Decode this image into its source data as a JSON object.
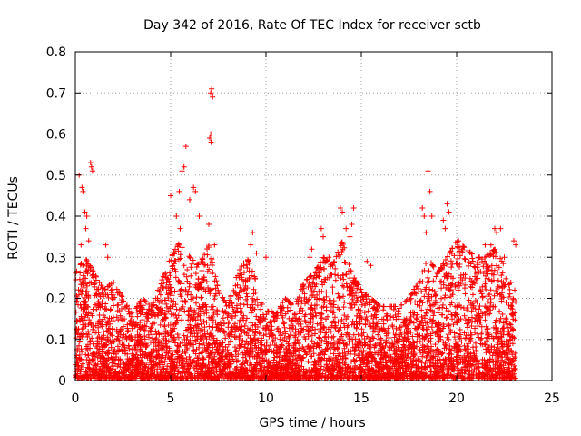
{
  "chart_data": {
    "type": "scatter",
    "title": "Day 342 of 2016, Rate Of TEC Index for receiver sctb",
    "xlabel": "GPS time / hours",
    "ylabel": "ROTI / TECUs",
    "xlim": [
      0,
      25
    ],
    "ylim": [
      0,
      0.8
    ],
    "xticks": [
      0,
      5,
      10,
      15,
      20,
      25
    ],
    "xtick_labels": [
      "0",
      "5",
      "10",
      "15",
      "20",
      "25"
    ],
    "yticks": [
      0,
      0.1,
      0.2,
      0.3,
      0.4,
      0.5,
      0.6,
      0.7,
      0.8
    ],
    "ytick_labels": [
      "0",
      "0.1",
      "0.2",
      "0.3",
      "0.4",
      "0.5",
      "0.6",
      "0.7",
      "0.8"
    ],
    "grid": true,
    "marker": "+",
    "color": "#ff0000",
    "series": [
      {
        "name": "ROTI",
        "description_values_note": "dense cloud of ROTI values from 0 to 23 h",
        "envelope_hours": [
          0,
          0.5,
          1,
          1.5,
          2,
          2.5,
          3,
          3.5,
          4,
          4.5,
          5,
          5.5,
          6,
          6.5,
          7,
          7.5,
          8,
          8.5,
          9,
          9.5,
          10,
          10.5,
          11,
          11.5,
          12,
          12.5,
          13,
          13.5,
          14,
          14.5,
          15,
          15.5,
          16,
          16.5,
          17,
          17.5,
          18,
          18.5,
          19,
          19.5,
          20,
          20.5,
          21,
          21.5,
          22,
          22.5,
          23
        ],
        "envelope_high": [
          0.26,
          0.3,
          0.26,
          0.22,
          0.24,
          0.2,
          0.16,
          0.2,
          0.18,
          0.24,
          0.3,
          0.34,
          0.3,
          0.28,
          0.33,
          0.22,
          0.18,
          0.26,
          0.3,
          0.24,
          0.18,
          0.16,
          0.2,
          0.18,
          0.24,
          0.26,
          0.3,
          0.28,
          0.34,
          0.26,
          0.22,
          0.2,
          0.18,
          0.18,
          0.18,
          0.2,
          0.24,
          0.3,
          0.26,
          0.3,
          0.34,
          0.32,
          0.3,
          0.3,
          0.32,
          0.28,
          0.22
        ],
        "peaks": [
          {
            "x": 0.35,
            "y": 0.47
          },
          {
            "x": 0.4,
            "y": 0.46
          },
          {
            "x": 0.5,
            "y": 0.41
          },
          {
            "x": 0.6,
            "y": 0.4
          },
          {
            "x": 0.8,
            "y": 0.53
          },
          {
            "x": 0.85,
            "y": 0.52
          },
          {
            "x": 0.9,
            "y": 0.51
          },
          {
            "x": 0.2,
            "y": 0.5
          },
          {
            "x": 0.55,
            "y": 0.37
          },
          {
            "x": 0.7,
            "y": 0.34
          },
          {
            "x": 0.3,
            "y": 0.33
          },
          {
            "x": 1.6,
            "y": 0.33
          },
          {
            "x": 1.7,
            "y": 0.3
          },
          {
            "x": 5.0,
            "y": 0.45
          },
          {
            "x": 5.3,
            "y": 0.4
          },
          {
            "x": 5.5,
            "y": 0.37
          },
          {
            "x": 5.6,
            "y": 0.51
          },
          {
            "x": 5.7,
            "y": 0.52
          },
          {
            "x": 5.8,
            "y": 0.57
          },
          {
            "x": 5.45,
            "y": 0.46
          },
          {
            "x": 6.2,
            "y": 0.47
          },
          {
            "x": 6.3,
            "y": 0.46
          },
          {
            "x": 6.0,
            "y": 0.44
          },
          {
            "x": 6.5,
            "y": 0.4
          },
          {
            "x": 7.1,
            "y": 0.7
          },
          {
            "x": 7.15,
            "y": 0.71
          },
          {
            "x": 7.2,
            "y": 0.69
          },
          {
            "x": 7.05,
            "y": 0.59
          },
          {
            "x": 7.1,
            "y": 0.6
          },
          {
            "x": 7.12,
            "y": 0.58
          },
          {
            "x": 7.0,
            "y": 0.38
          },
          {
            "x": 7.3,
            "y": 0.33
          },
          {
            "x": 9.3,
            "y": 0.36
          },
          {
            "x": 9.2,
            "y": 0.33
          },
          {
            "x": 9.5,
            "y": 0.31
          },
          {
            "x": 10.0,
            "y": 0.3
          },
          {
            "x": 12.3,
            "y": 0.3
          },
          {
            "x": 12.4,
            "y": 0.32
          },
          {
            "x": 12.9,
            "y": 0.37
          },
          {
            "x": 13.0,
            "y": 0.35
          },
          {
            "x": 13.3,
            "y": 0.3
          },
          {
            "x": 13.9,
            "y": 0.42
          },
          {
            "x": 14.0,
            "y": 0.41
          },
          {
            "x": 14.2,
            "y": 0.37
          },
          {
            "x": 14.4,
            "y": 0.35
          },
          {
            "x": 14.6,
            "y": 0.42
          },
          {
            "x": 14.5,
            "y": 0.38
          },
          {
            "x": 15.3,
            "y": 0.29
          },
          {
            "x": 15.5,
            "y": 0.28
          },
          {
            "x": 18.2,
            "y": 0.42
          },
          {
            "x": 18.3,
            "y": 0.4
          },
          {
            "x": 18.5,
            "y": 0.51
          },
          {
            "x": 18.6,
            "y": 0.46
          },
          {
            "x": 18.7,
            "y": 0.4
          },
          {
            "x": 18.4,
            "y": 0.36
          },
          {
            "x": 19.3,
            "y": 0.39
          },
          {
            "x": 19.5,
            "y": 0.43
          },
          {
            "x": 19.6,
            "y": 0.41
          },
          {
            "x": 19.4,
            "y": 0.37
          },
          {
            "x": 20.1,
            "y": 0.34
          },
          {
            "x": 20.3,
            "y": 0.32
          },
          {
            "x": 21.5,
            "y": 0.33
          },
          {
            "x": 21.8,
            "y": 0.33
          },
          {
            "x": 22.0,
            "y": 0.37
          },
          {
            "x": 22.1,
            "y": 0.36
          },
          {
            "x": 22.3,
            "y": 0.37
          },
          {
            "x": 22.5,
            "y": 0.3
          },
          {
            "x": 23.0,
            "y": 0.34
          },
          {
            "x": 23.1,
            "y": 0.33
          }
        ]
      }
    ]
  }
}
